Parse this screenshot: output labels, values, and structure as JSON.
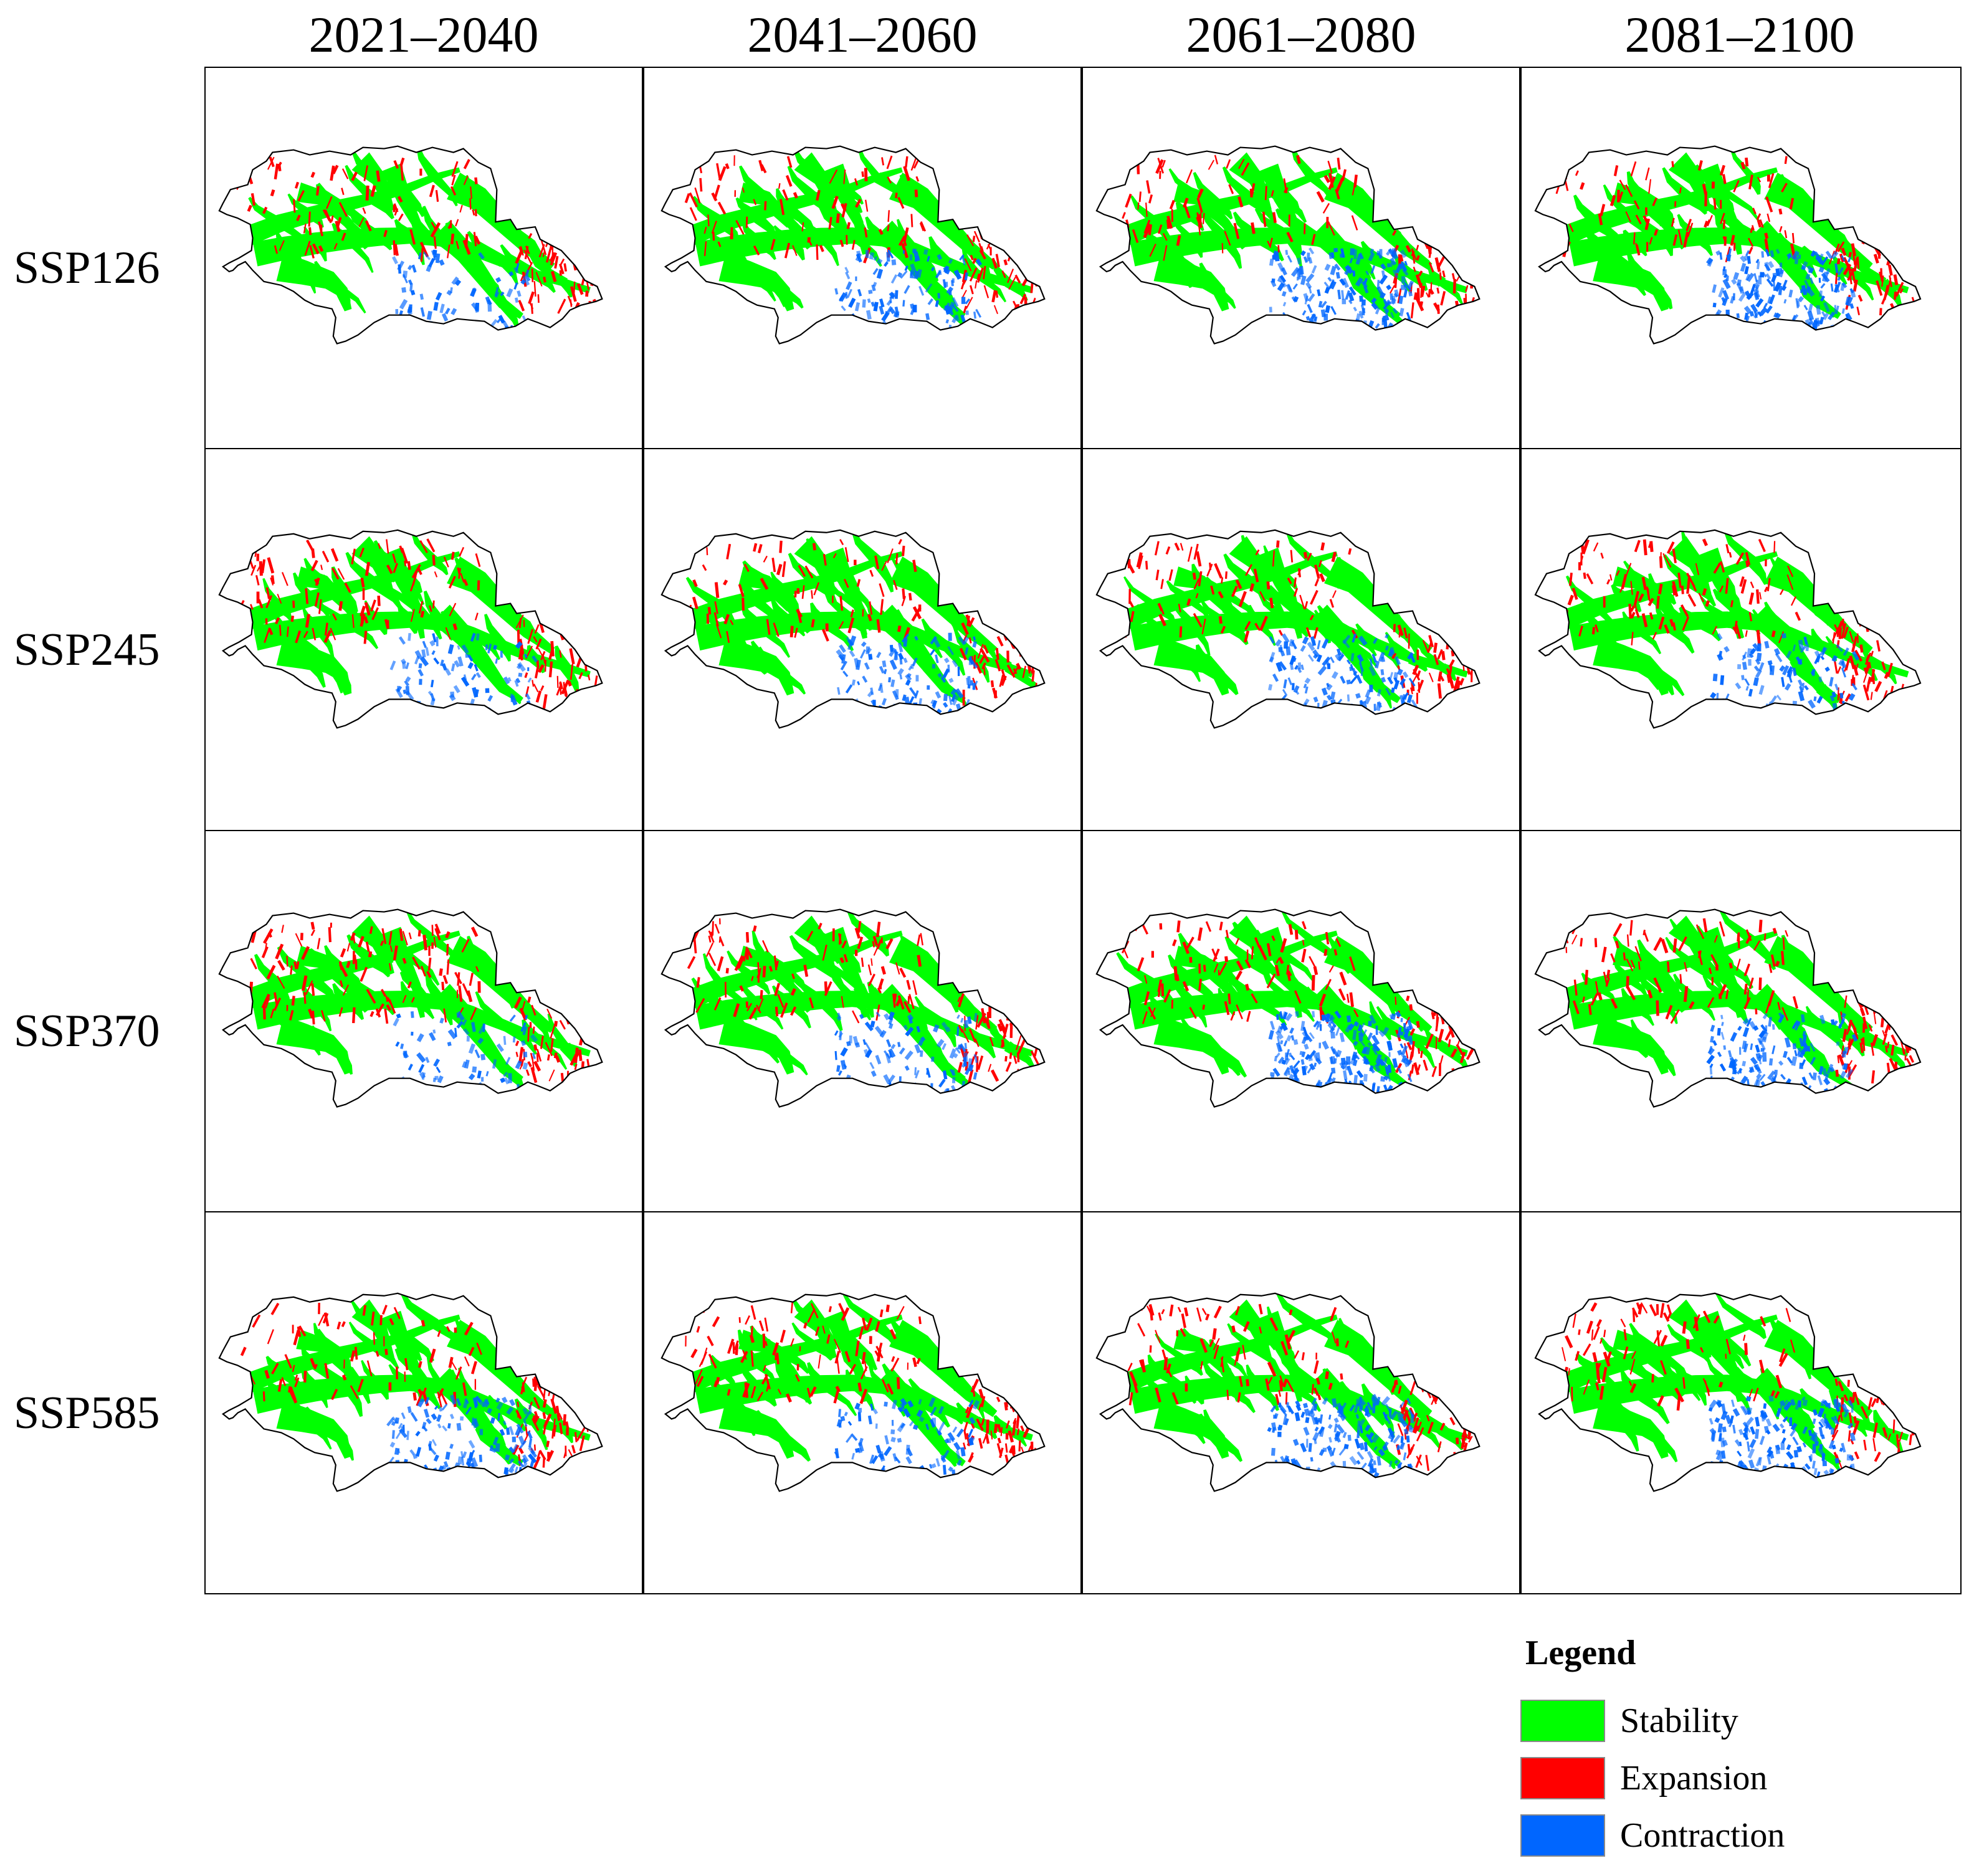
{
  "columns": [
    "2021–2040",
    "2041–2060",
    "2061–2080",
    "2081–2100"
  ],
  "rows": [
    "SSP126",
    "SSP245",
    "SSP370",
    "SSP585"
  ],
  "legend": {
    "title": "Legend",
    "items": [
      {
        "label": "Stability",
        "color": "#00ff00"
      },
      {
        "label": "Expansion",
        "color": "#ff0000"
      },
      {
        "label": "Contraction",
        "color": "#0066ff"
      }
    ]
  },
  "contraction_intensity": [
    [
      0.15,
      0.35,
      0.55,
      0.55
    ],
    [
      0.2,
      0.35,
      0.45,
      0.25
    ],
    [
      0.15,
      0.25,
      0.75,
      0.45
    ],
    [
      0.4,
      0.25,
      0.55,
      0.6
    ]
  ],
  "expansion_intensity": [
    [
      0.45,
      0.4,
      0.4,
      0.4
    ],
    [
      0.55,
      0.35,
      0.4,
      0.55
    ],
    [
      0.55,
      0.5,
      0.45,
      0.5
    ],
    [
      0.45,
      0.5,
      0.4,
      0.4
    ]
  ]
}
